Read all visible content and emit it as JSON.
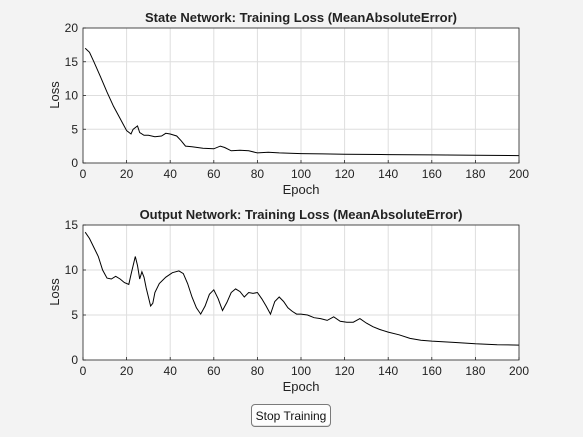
{
  "button": {
    "stop_label": "Stop Training"
  },
  "colors": {
    "background": "#f3f3f3",
    "axes_bg": "#ffffff",
    "grid": "#dedede",
    "line": "#000000"
  },
  "chart_data": [
    {
      "type": "line",
      "title": "State Network: Training Loss (MeanAbsoluteError)",
      "xlabel": "Epoch",
      "ylabel": "Loss",
      "xlim": [
        0,
        200
      ],
      "ylim": [
        0,
        20
      ],
      "xticks": [
        0,
        20,
        40,
        60,
        80,
        100,
        120,
        140,
        160,
        180,
        200
      ],
      "yticks": [
        0,
        5,
        10,
        15,
        20
      ],
      "grid": true,
      "series": [
        {
          "x": [
            1,
            3,
            5,
            8,
            11,
            14,
            17,
            20,
            22,
            23,
            25,
            26,
            28,
            30,
            33,
            36,
            38,
            40,
            43,
            45,
            47,
            50,
            55,
            60,
            63,
            65,
            68,
            72,
            76,
            80,
            85,
            90,
            100,
            110,
            120,
            140,
            160,
            180,
            200
          ],
          "y": [
            17.0,
            16.4,
            15.0,
            12.8,
            10.5,
            8.4,
            6.6,
            4.8,
            4.3,
            5.0,
            5.5,
            4.5,
            4.1,
            4.1,
            3.9,
            4.0,
            4.4,
            4.3,
            4.0,
            3.3,
            2.5,
            2.4,
            2.2,
            2.1,
            2.5,
            2.3,
            1.8,
            1.9,
            1.8,
            1.5,
            1.6,
            1.5,
            1.4,
            1.35,
            1.3,
            1.25,
            1.2,
            1.15,
            1.1
          ]
        }
      ]
    },
    {
      "type": "line",
      "title": "Output Network: Training Loss (MeanAbsoluteError)",
      "xlabel": "Epoch",
      "ylabel": "Loss",
      "xlim": [
        0,
        200
      ],
      "ylim": [
        0,
        15
      ],
      "xticks": [
        0,
        20,
        40,
        60,
        80,
        100,
        120,
        140,
        160,
        180,
        200
      ],
      "yticks": [
        0,
        5,
        10,
        15
      ],
      "grid": true,
      "series": [
        {
          "x": [
            1,
            3,
            5,
            7,
            9,
            11,
            13,
            15,
            17,
            19,
            21,
            22,
            24,
            25,
            26,
            27,
            28,
            29,
            30,
            31,
            32,
            33,
            35,
            38,
            41,
            44,
            46,
            48,
            50,
            52,
            54,
            56,
            58,
            60,
            62,
            64,
            66,
            68,
            70,
            72,
            74,
            76,
            78,
            80,
            82,
            84,
            86,
            88,
            90,
            92,
            94,
            96,
            98,
            100,
            103,
            106,
            109,
            112,
            115,
            118,
            121,
            124,
            127,
            130,
            133,
            136,
            140,
            145,
            150,
            155,
            160,
            170,
            180,
            190,
            200
          ],
          "y": [
            14.2,
            13.5,
            12.5,
            11.5,
            10.0,
            9.1,
            9.0,
            9.3,
            9.0,
            8.6,
            8.4,
            9.5,
            11.5,
            10.5,
            9.0,
            9.8,
            9.2,
            8.0,
            7.0,
            6.0,
            6.3,
            7.5,
            8.5,
            9.2,
            9.7,
            9.9,
            9.6,
            8.5,
            7.0,
            5.8,
            5.1,
            6.0,
            7.3,
            7.8,
            6.8,
            5.5,
            6.4,
            7.5,
            7.9,
            7.6,
            7.0,
            7.5,
            7.4,
            7.5,
            6.8,
            6.0,
            5.1,
            6.5,
            7.0,
            6.5,
            5.8,
            5.4,
            5.1,
            5.1,
            5.0,
            4.7,
            4.6,
            4.4,
            4.8,
            4.3,
            4.2,
            4.2,
            4.6,
            4.1,
            3.7,
            3.4,
            3.1,
            2.8,
            2.4,
            2.2,
            2.1,
            1.95,
            1.8,
            1.7,
            1.65
          ]
        }
      ]
    }
  ]
}
